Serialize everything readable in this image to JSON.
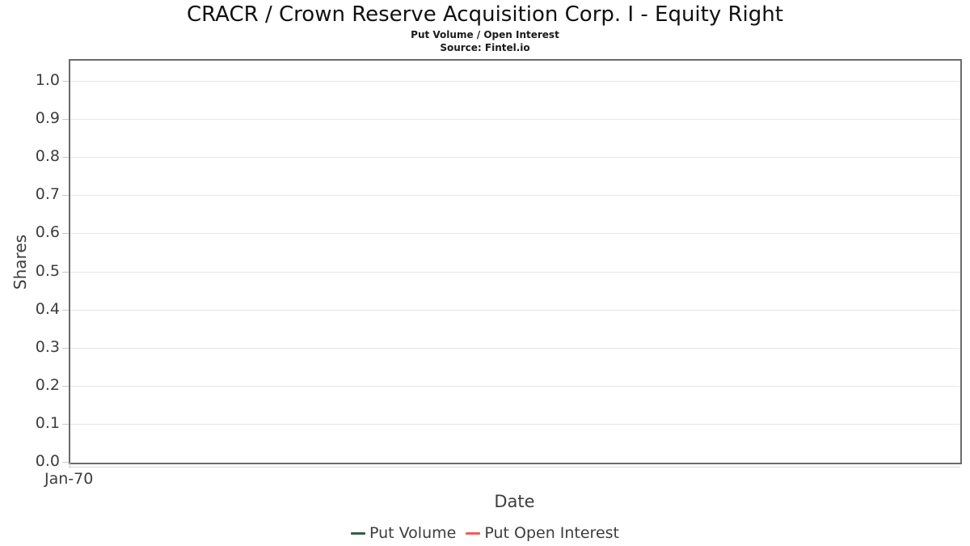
{
  "header": {
    "title": "CRACR / Crown Reserve Acquisition Corp. I - Equity Right",
    "subtitle": "Put Volume / Open Interest",
    "source": "Source: Fintel.io"
  },
  "chart_data": {
    "type": "line",
    "title": "CRACR / Crown Reserve Acquisition Corp. I - Equity Right",
    "subtitle": "Put Volume / Open Interest",
    "source": "Source: Fintel.io",
    "xlabel": "Date",
    "ylabel": "Shares",
    "ylim": [
      0.0,
      1.0
    ],
    "yticks": [
      "0.0",
      "0.1",
      "0.2",
      "0.3",
      "0.4",
      "0.5",
      "0.6",
      "0.7",
      "0.8",
      "0.9",
      "1.0"
    ],
    "xticks": [
      "Jan-70"
    ],
    "grid": true,
    "legend_position": "bottom",
    "series": [
      {
        "name": "Put Volume",
        "color": "#335f47",
        "x": [],
        "values": []
      },
      {
        "name": "Put Open Interest",
        "color": "#f25c5c",
        "x": [],
        "values": []
      }
    ],
    "note": "empty plot - no data points rendered"
  },
  "colors": {
    "plot_border": "#6b6b6b",
    "gridline": "#e6e6e6",
    "tick_mark": "#c9c9c9",
    "tick_label": "#3d3d3d",
    "put_volume": "#335f47",
    "put_open_interest": "#f25c5c"
  }
}
